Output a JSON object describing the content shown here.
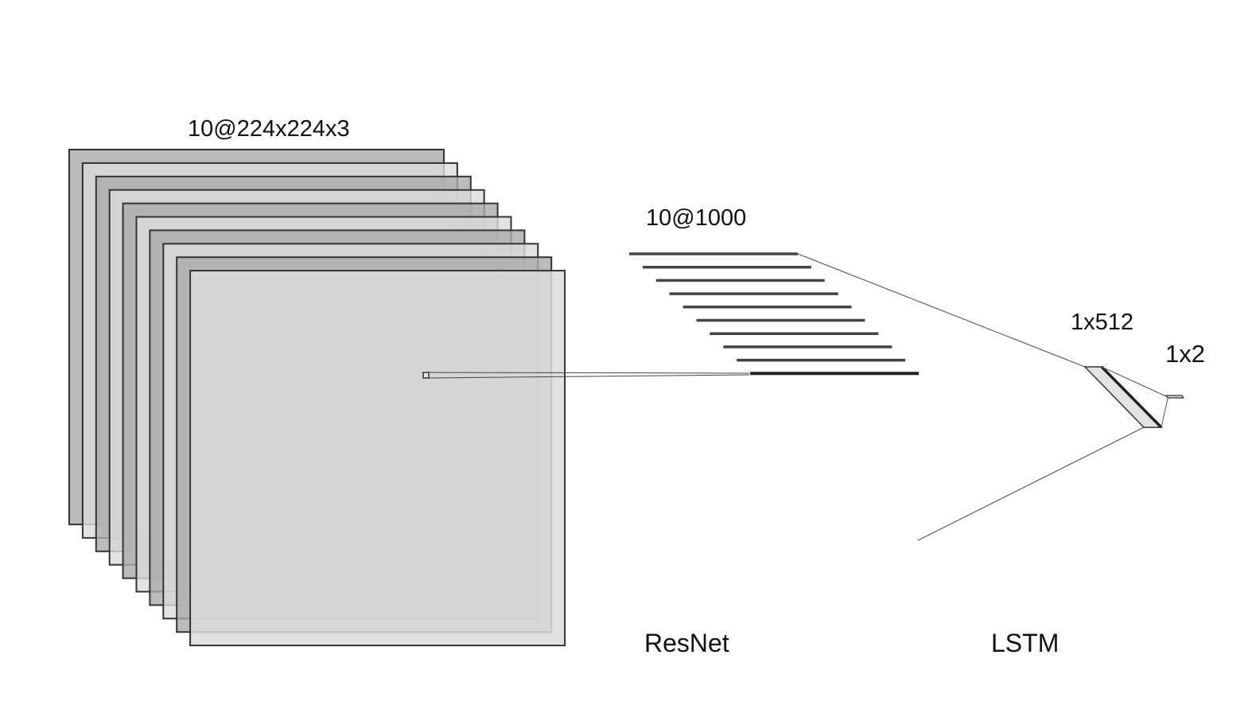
{
  "labels": {
    "input_shape": "10@224x224x3",
    "feature_shape": "10@1000",
    "hidden_shape": "1x512",
    "output_shape": "1x2",
    "resnet": "ResNet",
    "lstm": "LSTM"
  },
  "input_stack": {
    "frame_count": 10,
    "colors": [
      "#aaaaaa",
      "#dcdcdc"
    ]
  },
  "feature_stack": {
    "vector_count": 10,
    "color": "#444444"
  },
  "colors": {
    "stroke": "#333333",
    "connector": "#555555",
    "hidden_fill": "#e3e3e3"
  }
}
